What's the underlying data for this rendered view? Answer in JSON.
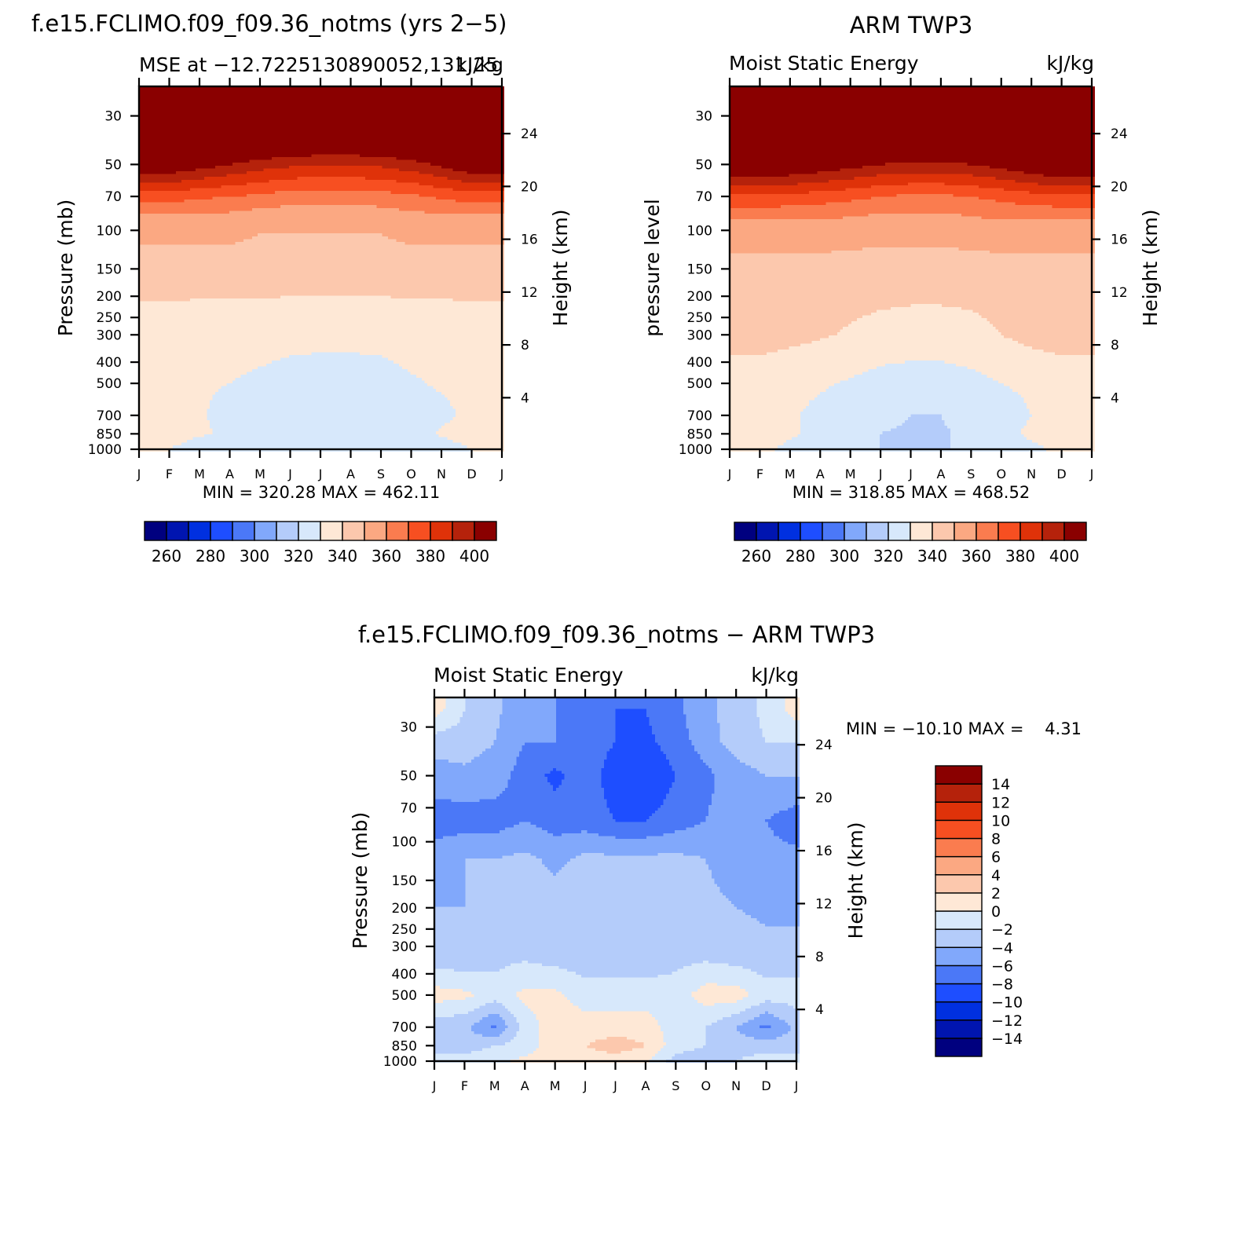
{
  "chart_data": [
    {
      "type": "heatmap",
      "panel": "model",
      "title": "f.e15.FCLIMO.f09_f09.36_notms (yrs 2−5)",
      "subtitle_left": "MSE at −12.7225130890052,131.25",
      "subtitle_right": "kJ/kg",
      "ylabel": "Pressure (mb)",
      "ylabel_right": "Height (km)",
      "x_ticks": [
        "J",
        "F",
        "M",
        "A",
        "M",
        "J",
        "J",
        "A",
        "S",
        "O",
        "N",
        "D",
        "J"
      ],
      "y_ticks": [
        "30",
        "50",
        "70",
        "100",
        "150",
        "200",
        "250",
        "300",
        "400",
        "500",
        "700",
        "850",
        "1000"
      ],
      "y_ticks_right": [
        "24",
        "20",
        "16",
        "12",
        "8",
        "4"
      ],
      "yscale": "log",
      "ylim": [
        1000,
        22
      ],
      "min_label": "MIN = 320.28 MAX = 462.11",
      "min": 320.28,
      "max": 462.11,
      "contour_levels": [
        250,
        260,
        270,
        280,
        290,
        300,
        310,
        320,
        330,
        340,
        350,
        360,
        370,
        380,
        390,
        400
      ],
      "colorbar_labels": [
        "260",
        "280",
        "300",
        "320",
        "340",
        "360",
        "380",
        "400"
      ],
      "colors": [
        "#00007f",
        "#0015b0",
        "#0030e0",
        "#1e4eff",
        "#4b78f7",
        "#81a8fb",
        "#b4ccfa",
        "#d7e8fb",
        "#fee8d6",
        "#fcc8ad",
        "#fba882",
        "#fa7c4f",
        "#f74f21",
        "#df3209",
        "#b5220b",
        "#8a0000"
      ],
      "values_at": [
        {
          "p": 1000,
          "v": [
            330,
            330,
            325,
            321,
            321,
            321,
            321,
            321,
            321,
            321,
            325,
            330,
            330
          ]
        },
        {
          "p": 850,
          "v": [
            335,
            335,
            331,
            329,
            323,
            321,
            320,
            320,
            321,
            327,
            331,
            335,
            335
          ]
        },
        {
          "p": 700,
          "v": [
            332,
            332,
            331,
            327,
            325,
            324,
            322,
            322,
            324,
            325,
            328,
            332,
            332
          ]
        },
        {
          "p": 500,
          "v": [
            332,
            332,
            331,
            330,
            328,
            326,
            325,
            325,
            326,
            329,
            331,
            332,
            332
          ]
        },
        {
          "p": 300,
          "v": [
            335,
            335,
            334,
            334,
            334,
            333,
            333,
            333,
            333,
            334,
            334,
            335,
            335
          ]
        },
        {
          "p": 150,
          "v": [
            345,
            345,
            345,
            345,
            345,
            345,
            345,
            345,
            345,
            345,
            345,
            345,
            345
          ]
        },
        {
          "p": 90,
          "v": [
            355,
            355,
            355,
            355,
            352,
            352,
            352,
            352,
            352,
            355,
            355,
            355,
            355
          ]
        },
        {
          "p": 70,
          "v": [
            375,
            375,
            372,
            370,
            368,
            365,
            365,
            365,
            366,
            368,
            372,
            375,
            375
          ]
        },
        {
          "p": 50,
          "v": [
            410,
            410,
            405,
            400,
            395,
            392,
            390,
            390,
            392,
            396,
            402,
            410,
            410
          ]
        },
        {
          "p": 30,
          "v": [
            450,
            450,
            448,
            446,
            444,
            443,
            442,
            442,
            443,
            445,
            447,
            450,
            450
          ]
        }
      ]
    },
    {
      "type": "heatmap",
      "panel": "obs",
      "title": "ARM TWP3",
      "subtitle_left": "Moist Static Energy",
      "subtitle_right": "kJ/kg",
      "ylabel": "pressure level",
      "ylabel_right": "Height (km)",
      "x_ticks": [
        "J",
        "F",
        "M",
        "A",
        "M",
        "J",
        "J",
        "A",
        "S",
        "O",
        "N",
        "D",
        "J"
      ],
      "y_ticks": [
        "30",
        "50",
        "70",
        "100",
        "150",
        "200",
        "250",
        "300",
        "400",
        "500",
        "700",
        "850",
        "1000"
      ],
      "y_ticks_right": [
        "24",
        "20",
        "16",
        "12",
        "8",
        "4"
      ],
      "yscale": "log",
      "ylim": [
        1000,
        22
      ],
      "min_label": "MIN = 318.85 MAX = 468.52",
      "min": 318.85,
      "max": 468.52,
      "contour_levels": [
        250,
        260,
        270,
        280,
        290,
        300,
        310,
        320,
        330,
        340,
        350,
        360,
        370,
        380,
        390,
        400
      ],
      "colorbar_labels": [
        "260",
        "280",
        "300",
        "320",
        "340",
        "360",
        "380",
        "400"
      ],
      "colors": [
        "#00007f",
        "#0015b0",
        "#0030e0",
        "#1e4eff",
        "#4b78f7",
        "#81a8fb",
        "#b4ccfa",
        "#d7e8fb",
        "#fee8d6",
        "#fcc8ad",
        "#fba882",
        "#fa7c4f",
        "#f74f21",
        "#df3209",
        "#b5220b",
        "#8a0000"
      ],
      "values_at": [
        {
          "p": 1000,
          "v": [
            332,
            332,
            328,
            323,
            321,
            320,
            320,
            320,
            320,
            321,
            328,
            332,
            332
          ]
        },
        {
          "p": 850,
          "v": [
            335,
            335,
            331,
            328,
            323,
            320,
            319,
            319,
            322,
            327,
            332,
            335,
            335
          ]
        },
        {
          "p": 700,
          "v": [
            332,
            332,
            331,
            328,
            325,
            322,
            320,
            320,
            323,
            325,
            330,
            332,
            332
          ]
        },
        {
          "p": 500,
          "v": [
            333,
            333,
            332,
            331,
            329,
            326,
            325,
            325,
            327,
            330,
            332,
            333,
            333
          ]
        },
        {
          "p": 300,
          "v": [
            345,
            345,
            343,
            341,
            339,
            337,
            336,
            336,
            337,
            340,
            343,
            345,
            345
          ]
        },
        {
          "p": 150,
          "v": [
            345,
            345,
            345,
            345,
            345,
            345,
            345,
            345,
            345,
            345,
            345,
            345,
            345
          ]
        },
        {
          "p": 90,
          "v": [
            360,
            360,
            360,
            360,
            358,
            356,
            356,
            356,
            358,
            360,
            360,
            360,
            360
          ]
        },
        {
          "p": 70,
          "v": [
            378,
            378,
            377,
            375,
            373,
            370,
            368,
            368,
            370,
            373,
            376,
            378,
            378
          ]
        },
        {
          "p": 50,
          "v": [
            415,
            415,
            412,
            408,
            404,
            400,
            398,
            398,
            400,
            404,
            410,
            415,
            415
          ]
        },
        {
          "p": 30,
          "v": [
            455,
            455,
            453,
            451,
            449,
            447,
            446,
            446,
            447,
            449,
            452,
            455,
            455
          ]
        }
      ]
    },
    {
      "type": "heatmap",
      "panel": "diff",
      "title": "f.e15.FCLIMO.f09_f09.36_notms − ARM TWP3",
      "subtitle_left": "Moist Static Energy",
      "subtitle_right": "kJ/kg",
      "ylabel": "Pressure (mb)",
      "ylabel_right": "Height (km)",
      "x_ticks": [
        "J",
        "F",
        "M",
        "A",
        "M",
        "J",
        "J",
        "A",
        "S",
        "O",
        "N",
        "D",
        "J"
      ],
      "y_ticks": [
        "30",
        "50",
        "70",
        "100",
        "150",
        "200",
        "250",
        "300",
        "400",
        "500",
        "700",
        "850",
        "1000"
      ],
      "y_ticks_right": [
        "24",
        "20",
        "16",
        "12",
        "8",
        "4"
      ],
      "yscale": "log",
      "ylim": [
        1000,
        22
      ],
      "min_label": "MIN = −10.10 MAX =    4.31",
      "min": -10.1,
      "max": 4.31,
      "contour_levels": [
        -16,
        -14,
        -12,
        -10,
        -8,
        -6,
        -4,
        -2,
        0,
        2,
        4,
        6,
        8,
        10,
        12,
        14
      ],
      "colorbar_labels": [
        "14",
        "12",
        "10",
        "8",
        "6",
        "4",
        "2",
        "0",
        "−2",
        "−4",
        "−6",
        "−8",
        "−10",
        "−12",
        "−14"
      ],
      "colors": [
        "#00007f",
        "#0015b0",
        "#0030e0",
        "#1e4eff",
        "#4b78f7",
        "#81a8fb",
        "#b4ccfa",
        "#d7e8fb",
        "#fee8d6",
        "#fcc8ad",
        "#fba882",
        "#fa7c4f",
        "#f74f21",
        "#df3209",
        "#b5220b",
        "#8a0000"
      ],
      "values_at": [
        {
          "p": 1000,
          "v": [
            -1,
            -1,
            -0.5,
            0.5,
            0.5,
            1,
            1,
            0.5,
            -3,
            -3,
            -2,
            -1,
            -1
          ]
        },
        {
          "p": 850,
          "v": [
            -3,
            -3,
            -2,
            -1,
            1,
            2,
            3,
            2,
            -1,
            -2,
            -3,
            -3,
            -3
          ]
        },
        {
          "p": 700,
          "v": [
            -3.5,
            -3.5,
            -6.5,
            -1,
            1,
            1,
            1,
            1,
            -1,
            -2,
            -4,
            -6.5,
            -3.5
          ]
        },
        {
          "p": 500,
          "v": [
            1,
            0.5,
            -1,
            0.5,
            0.5,
            -1,
            -1,
            -1,
            -1,
            1,
            1,
            -1,
            -1
          ]
        },
        {
          "p": 350,
          "v": [
            -3,
            -3,
            -2.5,
            -2,
            -2.5,
            -3,
            -3,
            -3,
            -2.5,
            -2,
            -2.5,
            -3,
            -3
          ]
        },
        {
          "p": 200,
          "v": [
            -4,
            -4,
            -3.5,
            -3,
            -3,
            -3,
            -3,
            -3,
            -3,
            -3.5,
            -4,
            -4.5,
            -4.5
          ]
        },
        {
          "p": 120,
          "v": [
            -5,
            -4,
            -4,
            -3.5,
            -4.5,
            -3.5,
            -3.5,
            -3.5,
            -3.5,
            -4,
            -5,
            -5.5,
            -5.5
          ]
        },
        {
          "p": 80,
          "v": [
            -7,
            -7,
            -7,
            -6,
            -7,
            -7,
            -8,
            -8,
            -7,
            -6,
            -5,
            -6,
            -7
          ]
        },
        {
          "p": 50,
          "v": [
            -5,
            -4.5,
            -5,
            -7,
            -8.5,
            -7,
            -9,
            -10,
            -8,
            -6.5,
            -5,
            -4,
            -4
          ]
        },
        {
          "p": 35,
          "v": [
            -3,
            -3,
            -4,
            -6,
            -6,
            -7,
            -8,
            -8.5,
            -7,
            -5,
            -3,
            -2,
            -2
          ]
        },
        {
          "p": 25,
          "v": [
            1,
            -2,
            -3.5,
            -5.5,
            -6,
            -6.5,
            -8,
            -8,
            -6.5,
            -4.5,
            -3,
            -1.5,
            1
          ]
        }
      ]
    }
  ]
}
